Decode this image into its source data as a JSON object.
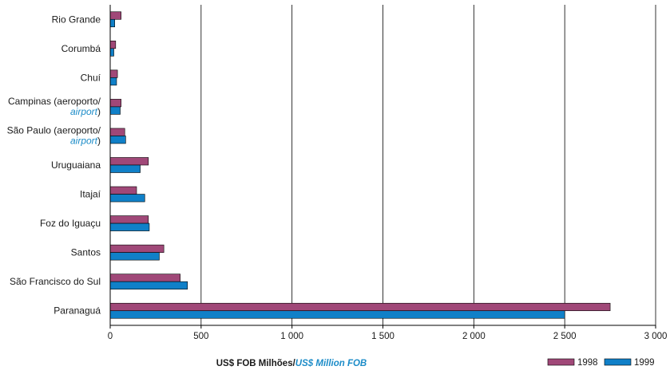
{
  "chart_data": {
    "type": "bar",
    "orientation": "horizontal",
    "categories": [
      {
        "main": "Rio Grande",
        "alt": ""
      },
      {
        "main": "Corumbá",
        "alt": ""
      },
      {
        "main": "Chuí",
        "alt": ""
      },
      {
        "main": "Campinas (aeroporto/",
        "alt": "airport",
        "close": ")"
      },
      {
        "main": "São Paulo (aeroporto/",
        "alt": "airport",
        "close": ")"
      },
      {
        "main": "Uruguaiana",
        "alt": ""
      },
      {
        "main": "Itajaí",
        "alt": ""
      },
      {
        "main": "Foz do Iguaçu",
        "alt": ""
      },
      {
        "main": "Santos",
        "alt": ""
      },
      {
        "main": "São Francisco do Sul",
        "alt": ""
      },
      {
        "main": "Paranaguá",
        "alt": ""
      }
    ],
    "series": [
      {
        "name": "1998",
        "color": "#a04878",
        "values": [
          60,
          30,
          40,
          60,
          80,
          210,
          145,
          210,
          295,
          385,
          2750
        ]
      },
      {
        "name": "1999",
        "color": "#1080c8",
        "values": [
          25,
          20,
          35,
          55,
          85,
          165,
          190,
          215,
          270,
          425,
          2500
        ]
      }
    ],
    "xlabel": {
      "main": "US$ FOB Milhões/",
      "alt": "US$ Million FOB"
    },
    "xlim": [
      0,
      3000
    ],
    "xticks": [
      0,
      500,
      1000,
      1500,
      2000,
      2500,
      3000
    ],
    "xtick_labels": [
      "0",
      "500",
      "1 000",
      "1 500",
      "2 000",
      "2 500",
      "3 000"
    ],
    "grid": "vertical",
    "legend_position": "bottom-right"
  }
}
